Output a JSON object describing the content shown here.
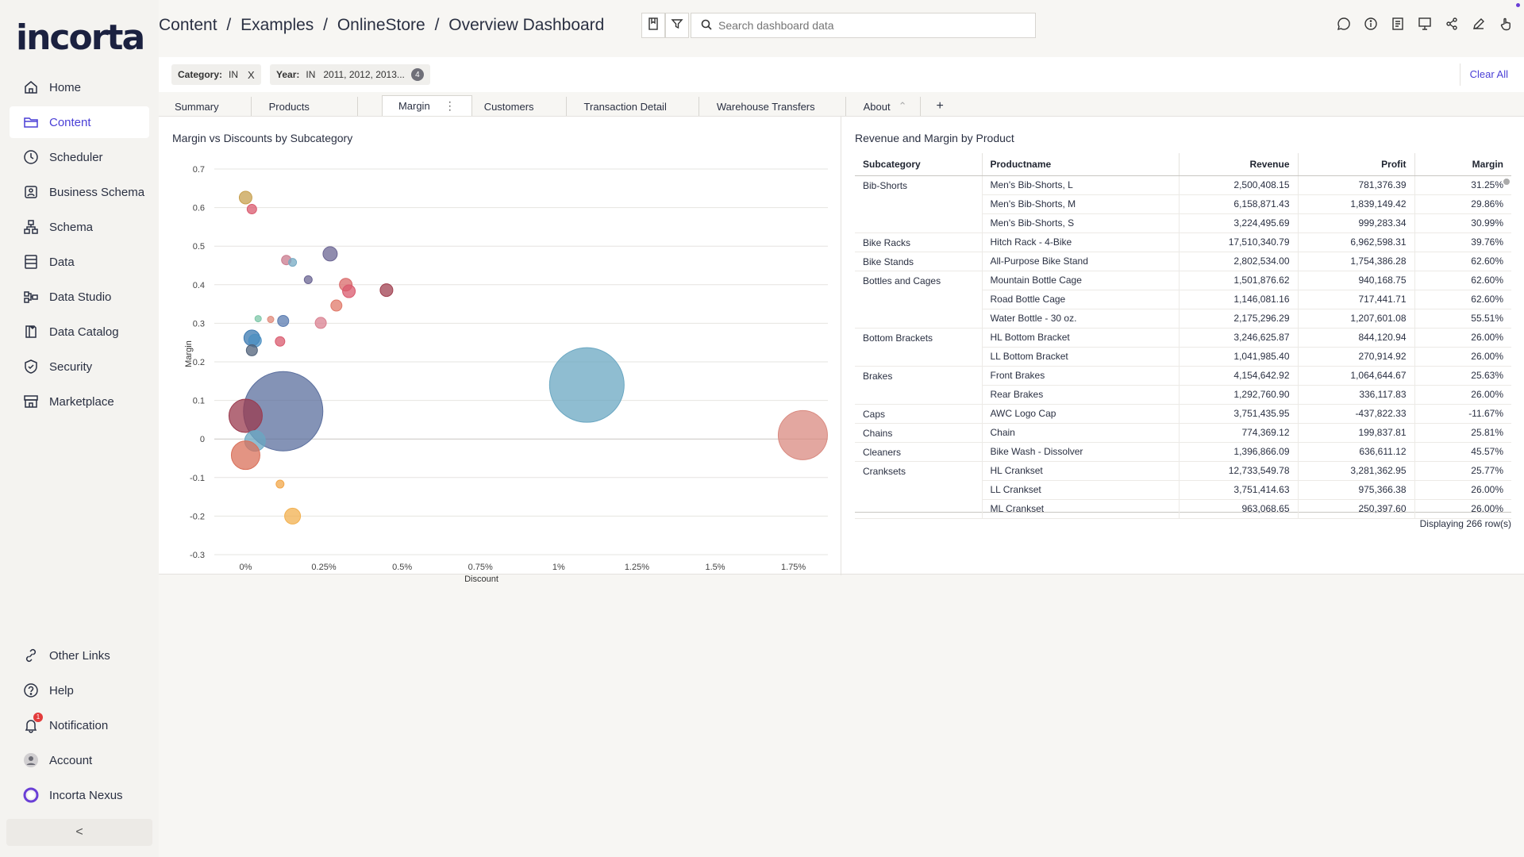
{
  "app": {
    "logo": "incorta"
  },
  "sidebar": {
    "items": [
      {
        "label": "Home",
        "icon": "home-icon"
      },
      {
        "label": "Content",
        "icon": "folder-icon"
      },
      {
        "label": "Scheduler",
        "icon": "clock-icon"
      },
      {
        "label": "Business Schema",
        "icon": "business-schema-icon"
      },
      {
        "label": "Schema",
        "icon": "schema-icon"
      },
      {
        "label": "Data",
        "icon": "data-icon"
      },
      {
        "label": "Data Studio",
        "icon": "data-studio-icon"
      },
      {
        "label": "Data Catalog",
        "icon": "data-catalog-icon"
      },
      {
        "label": "Security",
        "icon": "shield-icon"
      },
      {
        "label": "Marketplace",
        "icon": "marketplace-icon"
      }
    ],
    "bottom_items": [
      {
        "label": "Other Links",
        "icon": "link-icon"
      },
      {
        "label": "Help",
        "icon": "help-icon"
      },
      {
        "label": "Notification",
        "icon": "bell-icon",
        "badge": "1"
      },
      {
        "label": "Account",
        "icon": "account-icon"
      },
      {
        "label": "Incorta Nexus",
        "icon": "nexus-icon"
      }
    ],
    "collapse_icon": "<"
  },
  "header": {
    "breadcrumb": [
      "Content",
      "/",
      "Examples",
      "/",
      "OnlineStore",
      "/",
      "Overview Dashboard"
    ],
    "search_placeholder": "Search dashboard data"
  },
  "filters": {
    "chips": [
      {
        "label": "Category:",
        "op": "IN",
        "value": "",
        "close": "X"
      },
      {
        "label": "Year:",
        "op": "IN",
        "value": "2011, 2012, 2013...",
        "count": "4"
      }
    ],
    "clear_all": "Clear All"
  },
  "tabs": [
    "Summary",
    "Products",
    "Margin",
    "Customers",
    "Transaction Detail",
    "Warehouse Transfers",
    "About"
  ],
  "active_tab": "Margin",
  "chart_title": "Margin vs Discounts by Subcategory",
  "chart_data": {
    "type": "scatter",
    "title": "Margin vs Discounts by Subcategory",
    "xlabel": "Discount",
    "ylabel": "Margin",
    "xlim": [
      -0.001,
      0.0186
    ],
    "ylim": [
      -0.3,
      0.7
    ],
    "xticks": [
      "0%",
      "0.25%",
      "0.5%",
      "0.75%",
      "1%",
      "1.25%",
      "1.5%",
      "1.75%"
    ],
    "xtick_values": [
      0,
      0.0025,
      0.005,
      0.0075,
      0.01,
      0.0125,
      0.015,
      0.0175
    ],
    "yticks": [
      "0.7",
      "0.6",
      "0.5",
      "0.4",
      "0.3",
      "0.2",
      "0.1",
      "0",
      "-0.1",
      "-0.2",
      "-0.3"
    ],
    "ytick_values": [
      0.7,
      0.6,
      0.5,
      0.4,
      0.3,
      0.2,
      0.1,
      0,
      -0.1,
      -0.2,
      -0.3
    ],
    "grid": true,
    "points": [
      {
        "x": 0.0,
        "y": 0.626,
        "r": 8,
        "color": "#c7a04f"
      },
      {
        "x": 0.0002,
        "y": 0.596,
        "r": 6,
        "color": "#d95a6e"
      },
      {
        "x": 0.0013,
        "y": 0.464,
        "r": 6,
        "color": "#c97a8d"
      },
      {
        "x": 0.0015,
        "y": 0.458,
        "r": 5,
        "color": "#76aac3"
      },
      {
        "x": 0.0027,
        "y": 0.48,
        "r": 9,
        "color": "#6b6593"
      },
      {
        "x": 0.002,
        "y": 0.413,
        "r": 5,
        "color": "#6b6593"
      },
      {
        "x": 0.0032,
        "y": 0.4,
        "r": 8,
        "color": "#d96a6a"
      },
      {
        "x": 0.0033,
        "y": 0.383,
        "r": 8,
        "color": "#d95a6e"
      },
      {
        "x": 0.0045,
        "y": 0.386,
        "r": 8,
        "color": "#a04050"
      },
      {
        "x": 0.0029,
        "y": 0.346,
        "r": 7,
        "color": "#e07a6a"
      },
      {
        "x": 0.0004,
        "y": 0.312,
        "r": 4,
        "color": "#7ec7a8"
      },
      {
        "x": 0.0008,
        "y": 0.31,
        "r": 4,
        "color": "#e08a7a"
      },
      {
        "x": 0.0012,
        "y": 0.306,
        "r": 7,
        "color": "#5a7bb0"
      },
      {
        "x": 0.0024,
        "y": 0.301,
        "r": 7,
        "color": "#d98090"
      },
      {
        "x": 0.0002,
        "y": 0.262,
        "r": 10,
        "color": "#3a78b0"
      },
      {
        "x": 0.0003,
        "y": 0.255,
        "r": 8,
        "color": "#4b8fc2"
      },
      {
        "x": 0.0011,
        "y": 0.253,
        "r": 6,
        "color": "#d95a6e"
      },
      {
        "x": 0.0002,
        "y": 0.23,
        "r": 7,
        "color": "#50627a"
      },
      {
        "x": 0.0012,
        "y": 0.072,
        "r": 50,
        "color": "#5b6f9e"
      },
      {
        "x": 0.0,
        "y": 0.06,
        "r": 21,
        "color": "#9a3a4e"
      },
      {
        "x": 0.0003,
        "y": -0.005,
        "r": 13,
        "color": "#6aa7c2"
      },
      {
        "x": 0.0,
        "y": -0.042,
        "r": 18,
        "color": "#d9705a"
      },
      {
        "x": 0.0011,
        "y": -0.117,
        "r": 5,
        "color": "#f2a74a"
      },
      {
        "x": 0.0015,
        "y": -0.2,
        "r": 10,
        "color": "#f2b04f"
      },
      {
        "x": 0.0109,
        "y": 0.14,
        "r": 47,
        "color": "#6aa7c2"
      },
      {
        "x": 0.0178,
        "y": 0.01,
        "r": 31,
        "color": "#d98a80"
      }
    ]
  },
  "table": {
    "title": "Revenue and Margin by Product",
    "columns": [
      "Subcategory",
      "Productname",
      "Revenue",
      "Profit",
      "Margin"
    ],
    "rows": [
      [
        "Bib-Shorts",
        "Men's Bib-Shorts, L",
        "2,500,408.15",
        "781,376.39",
        "31.25%"
      ],
      [
        "",
        "Men's Bib-Shorts, M",
        "6,158,871.43",
        "1,839,149.42",
        "29.86%"
      ],
      [
        "",
        "Men's Bib-Shorts, S",
        "3,224,495.69",
        "999,283.34",
        "30.99%"
      ],
      [
        "Bike Racks",
        "Hitch Rack - 4-Bike",
        "17,510,340.79",
        "6,962,598.31",
        "39.76%"
      ],
      [
        "Bike Stands",
        "All-Purpose Bike Stand",
        "2,802,534.00",
        "1,754,386.28",
        "62.60%"
      ],
      [
        "Bottles and Cages",
        "Mountain Bottle Cage",
        "1,501,876.62",
        "940,168.75",
        "62.60%"
      ],
      [
        "",
        "Road Bottle Cage",
        "1,146,081.16",
        "717,441.71",
        "62.60%"
      ],
      [
        "",
        "Water Bottle - 30 oz.",
        "2,175,296.29",
        "1,207,601.08",
        "55.51%"
      ],
      [
        "Bottom Brackets",
        "HL Bottom Bracket",
        "3,246,625.87",
        "844,120.94",
        "26.00%"
      ],
      [
        "",
        "LL Bottom Bracket",
        "1,041,985.40",
        "270,914.92",
        "26.00%"
      ],
      [
        "Brakes",
        "Front Brakes",
        "4,154,642.92",
        "1,064,644.67",
        "25.63%"
      ],
      [
        "",
        "Rear Brakes",
        "1,292,760.90",
        "336,117.83",
        "26.00%"
      ],
      [
        "Caps",
        "AWC Logo Cap",
        "3,751,435.95",
        "-437,822.33",
        "-11.67%"
      ],
      [
        "Chains",
        "Chain",
        "774,369.12",
        "199,837.81",
        "25.81%"
      ],
      [
        "Cleaners",
        "Bike Wash - Dissolver",
        "1,396,866.09",
        "636,611.12",
        "45.57%"
      ],
      [
        "Cranksets",
        "HL Crankset",
        "12,733,549.78",
        "3,281,362.95",
        "25.77%"
      ],
      [
        "",
        "LL Crankset",
        "3,751,414.63",
        "975,366.38",
        "26.00%"
      ],
      [
        "",
        "ML Crankset",
        "963,068.65",
        "250,397.60",
        "26.00%"
      ]
    ],
    "row_count": "Displaying 266 row(s)"
  }
}
